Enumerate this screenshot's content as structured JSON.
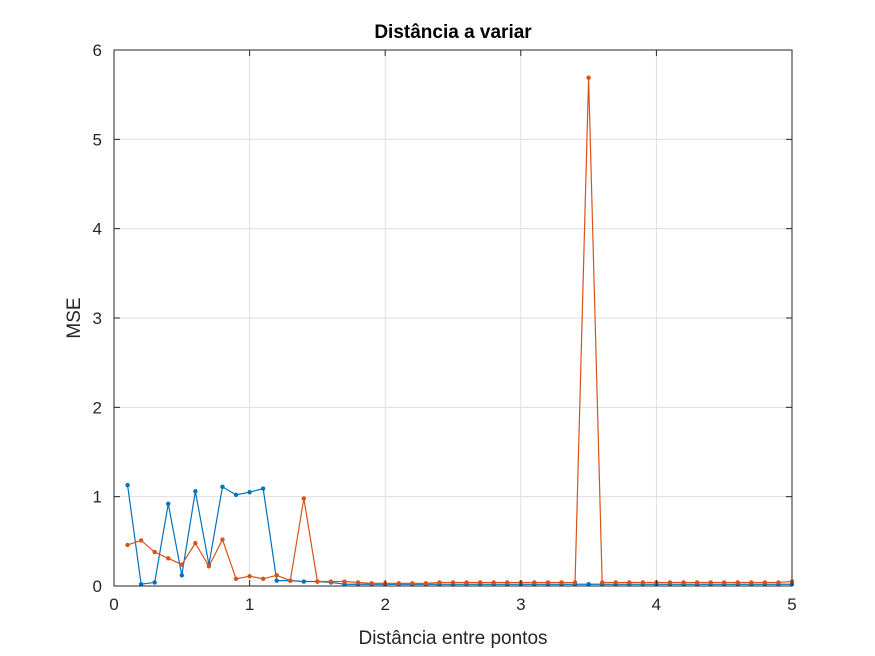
{
  "chart_data": {
    "type": "line",
    "title": "Distância a variar",
    "xlabel": "Distância entre pontos",
    "ylabel": "MSE",
    "xlim": [
      0,
      5
    ],
    "ylim": [
      0,
      6
    ],
    "xticks": [
      "0",
      "1",
      "2",
      "3",
      "4",
      "5"
    ],
    "yticks": [
      "0",
      "1",
      "2",
      "3",
      "4",
      "5",
      "6"
    ],
    "grid": true,
    "x": [
      0.1,
      0.2,
      0.3,
      0.4,
      0.5,
      0.6,
      0.7,
      0.8,
      0.9,
      1.0,
      1.1,
      1.2,
      1.3,
      1.4,
      1.5,
      1.6,
      1.7,
      1.8,
      1.9,
      2.0,
      2.1,
      2.2,
      2.3,
      2.4,
      2.5,
      2.6,
      2.7,
      2.8,
      2.9,
      3.0,
      3.1,
      3.2,
      3.3,
      3.4,
      3.5,
      3.6,
      3.7,
      3.8,
      3.9,
      4.0,
      4.1,
      4.2,
      4.3,
      4.4,
      4.5,
      4.6,
      4.7,
      4.8,
      4.9,
      5.0
    ],
    "series": [
      {
        "color": "#0072BD",
        "values": [
          1.13,
          0.02,
          0.04,
          0.92,
          0.12,
          1.06,
          0.24,
          1.11,
          1.02,
          1.05,
          1.09,
          0.06,
          0.06,
          0.05,
          0.05,
          0.04,
          0.02,
          0.02,
          0.02,
          0.02,
          0.02,
          0.02,
          0.02,
          0.02,
          0.02,
          0.02,
          0.02,
          0.02,
          0.02,
          0.02,
          0.02,
          0.02,
          0.02,
          0.02,
          0.02,
          0.02,
          0.02,
          0.02,
          0.02,
          0.02,
          0.02,
          0.02,
          0.02,
          0.02,
          0.02,
          0.02,
          0.02,
          0.02,
          0.02,
          0.02
        ]
      },
      {
        "color": "#D95319",
        "values": [
          0.46,
          0.51,
          0.38,
          0.31,
          0.24,
          0.48,
          0.22,
          0.52,
          0.08,
          0.11,
          0.08,
          0.12,
          0.06,
          0.98,
          0.05,
          0.05,
          0.05,
          0.04,
          0.03,
          0.03,
          0.03,
          0.03,
          0.03,
          0.04,
          0.04,
          0.04,
          0.04,
          0.04,
          0.04,
          0.04,
          0.04,
          0.04,
          0.04,
          0.04,
          5.69,
          0.04,
          0.04,
          0.04,
          0.04,
          0.04,
          0.04,
          0.04,
          0.04,
          0.04,
          0.04,
          0.04,
          0.04,
          0.04,
          0.04,
          0.05
        ]
      }
    ]
  }
}
